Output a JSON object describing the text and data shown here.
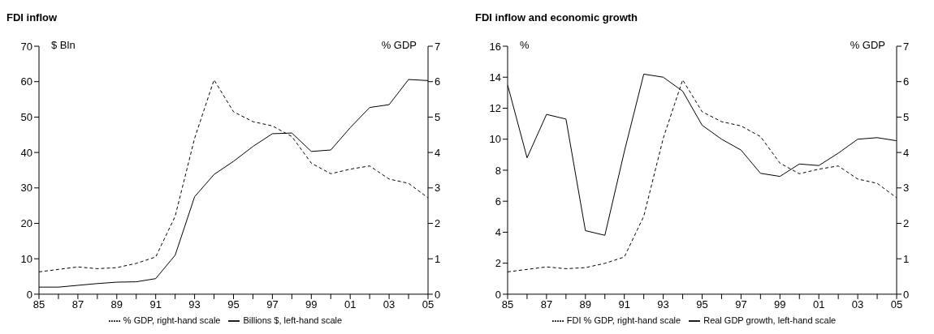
{
  "chart_data": [
    {
      "type": "line",
      "title": "FDI inflow",
      "ylabel": "$ Bln",
      "y2label": "% GDP",
      "x": [
        1985,
        1986,
        1987,
        1988,
        1989,
        1990,
        1991,
        1992,
        1993,
        1994,
        1995,
        1996,
        1997,
        1998,
        1999,
        2000,
        2001,
        2002,
        2003,
        2004,
        2005
      ],
      "series": [
        {
          "name": "Billions $, left-hand scale",
          "color": "#000000",
          "line_style": "solid",
          "values": [
            2.0,
            2.0,
            2.5,
            3.0,
            3.4,
            3.5,
            4.4,
            11.0,
            27.5,
            33.8,
            37.5,
            41.7,
            45.3,
            45.5,
            40.3,
            40.7,
            47.0,
            52.7,
            53.5,
            60.6,
            60.3
          ]
        },
        {
          "name": "% GDP, right-hand scale",
          "color": "#000000",
          "line_style": "dashed",
          "axis": "y2",
          "values": [
            0.63,
            0.7,
            0.77,
            0.72,
            0.75,
            0.87,
            1.05,
            2.2,
            4.4,
            6.05,
            5.15,
            4.87,
            4.75,
            4.45,
            3.7,
            3.4,
            3.53,
            3.62,
            3.25,
            3.13,
            2.72
          ]
        }
      ],
      "xlim": [
        1985,
        2005
      ],
      "xticks": [
        {
          "value": 1985,
          "label": "85"
        },
        {
          "value": 1986,
          "label": null
        },
        {
          "value": 1987,
          "label": "87"
        },
        {
          "value": 1988,
          "label": null
        },
        {
          "value": 1989,
          "label": "89"
        },
        {
          "value": 1990,
          "label": null
        },
        {
          "value": 1991,
          "label": "91"
        },
        {
          "value": 1992,
          "label": null
        },
        {
          "value": 1993,
          "label": "93"
        },
        {
          "value": 1994,
          "label": null
        },
        {
          "value": 1995,
          "label": "95"
        },
        {
          "value": 1996,
          "label": null
        },
        {
          "value": 1997,
          "label": "97"
        },
        {
          "value": 1998,
          "label": null
        },
        {
          "value": 1999,
          "label": "99"
        },
        {
          "value": 2000,
          "label": null
        },
        {
          "value": 2001,
          "label": "01"
        },
        {
          "value": 2002,
          "label": null
        },
        {
          "value": 2003,
          "label": "03"
        },
        {
          "value": 2004,
          "label": null
        },
        {
          "value": 2005,
          "label": "05"
        }
      ],
      "ylim": [
        0,
        70
      ],
      "yticks": [
        0,
        10,
        20,
        30,
        40,
        50,
        60,
        70
      ],
      "y2lim": [
        0,
        7
      ],
      "y2ticks": [
        0,
        1,
        2,
        3,
        4,
        5,
        6,
        7
      ],
      "grid": false,
      "legend": "bottom",
      "marker": "none"
    },
    {
      "type": "line",
      "title": "FDI inflow and economic growth",
      "ylabel": "%",
      "y2label": "% GDP",
      "x": [
        1985,
        1986,
        1987,
        1988,
        1989,
        1990,
        1991,
        1992,
        1993,
        1994,
        1995,
        1996,
        1997,
        1998,
        1999,
        2000,
        2001,
        2002,
        2003,
        2004,
        2005
      ],
      "series": [
        {
          "name": "Real GDP growth, left-hand scale",
          "color": "#000000",
          "line_style": "solid",
          "values": [
            13.5,
            8.8,
            11.6,
            11.3,
            4.1,
            3.8,
            9.2,
            14.2,
            14.0,
            13.1,
            10.9,
            10.0,
            9.3,
            7.8,
            7.6,
            8.4,
            8.3,
            9.1,
            10.0,
            10.1,
            9.9
          ]
        },
        {
          "name": "FDI % GDP, right-hand scale",
          "color": "#000000",
          "line_style": "dashed",
          "axis": "y2",
          "values": [
            0.63,
            0.7,
            0.77,
            0.72,
            0.75,
            0.87,
            1.05,
            2.2,
            4.4,
            6.05,
            5.15,
            4.87,
            4.75,
            4.45,
            3.7,
            3.4,
            3.53,
            3.62,
            3.25,
            3.13,
            2.72
          ]
        }
      ],
      "xlim": [
        1985,
        2005
      ],
      "xticks": [
        {
          "value": 1985,
          "label": "85"
        },
        {
          "value": 1986,
          "label": null
        },
        {
          "value": 1987,
          "label": "87"
        },
        {
          "value": 1988,
          "label": null
        },
        {
          "value": 1989,
          "label": "89"
        },
        {
          "value": 1990,
          "label": null
        },
        {
          "value": 1991,
          "label": "91"
        },
        {
          "value": 1992,
          "label": null
        },
        {
          "value": 1993,
          "label": "93"
        },
        {
          "value": 1994,
          "label": null
        },
        {
          "value": 1995,
          "label": "95"
        },
        {
          "value": 1996,
          "label": null
        },
        {
          "value": 1997,
          "label": "97"
        },
        {
          "value": 1998,
          "label": null
        },
        {
          "value": 1999,
          "label": "99"
        },
        {
          "value": 2000,
          "label": null
        },
        {
          "value": 2001,
          "label": "01"
        },
        {
          "value": 2002,
          "label": null
        },
        {
          "value": 2003,
          "label": "03"
        },
        {
          "value": 2004,
          "label": null
        },
        {
          "value": 2005,
          "label": "05"
        }
      ],
      "ylim": [
        0,
        16
      ],
      "yticks": [
        0,
        2,
        4,
        6,
        8,
        10,
        12,
        14,
        16
      ],
      "y2lim": [
        0,
        7
      ],
      "y2ticks": [
        0,
        1,
        2,
        3,
        4,
        5,
        6,
        7
      ],
      "grid": false,
      "legend": "bottom",
      "marker": "none"
    }
  ]
}
